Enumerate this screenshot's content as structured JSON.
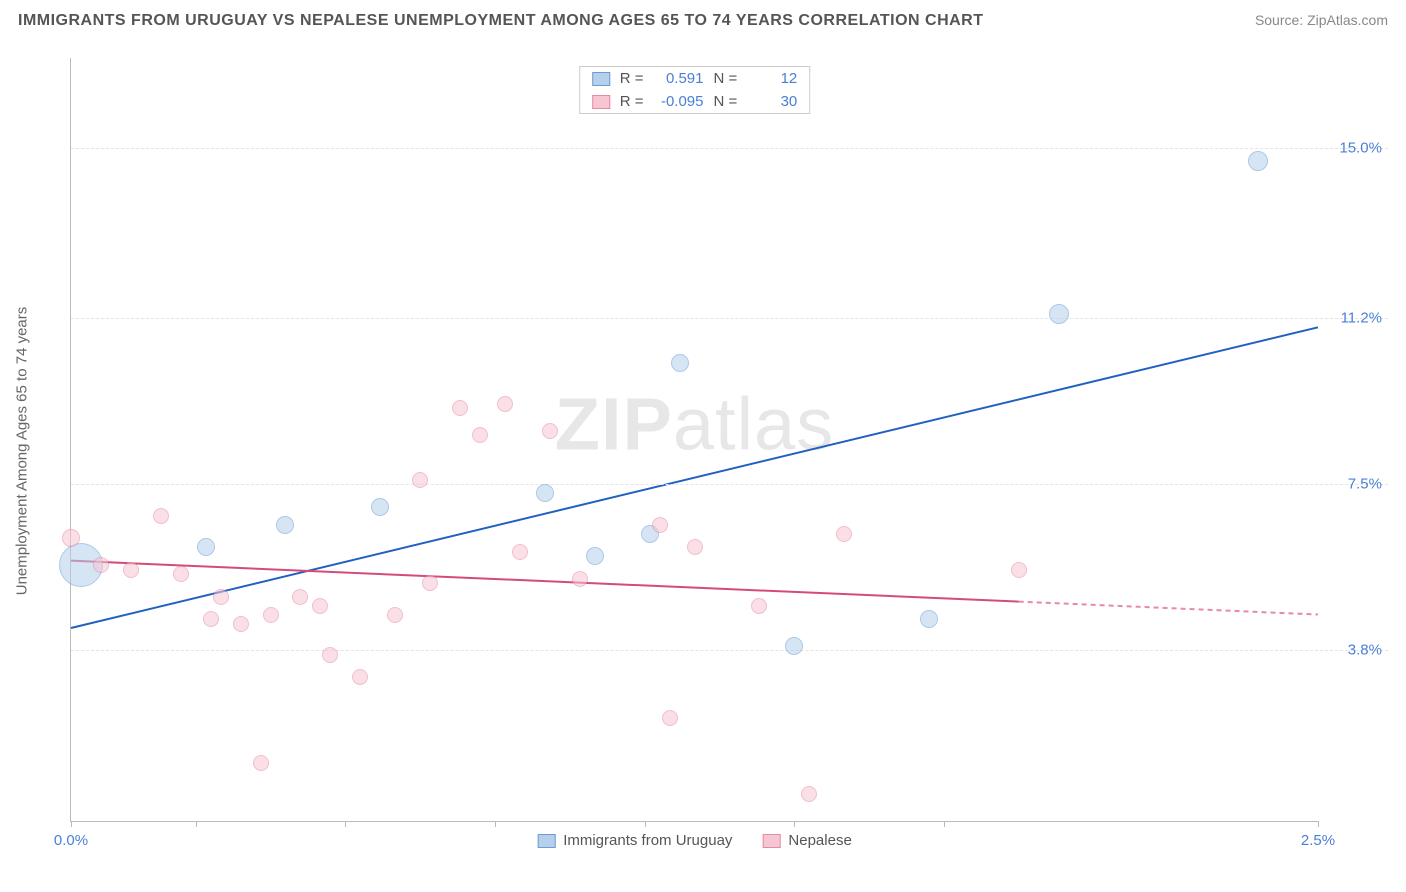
{
  "header": {
    "title": "IMMIGRANTS FROM URUGUAY VS NEPALESE UNEMPLOYMENT AMONG AGES 65 TO 74 YEARS CORRELATION CHART",
    "source": "Source: ZipAtlas.com"
  },
  "watermark": {
    "prefix": "ZIP",
    "suffix": "atlas"
  },
  "chart": {
    "type": "scatter",
    "ylabel": "Unemployment Among Ages 65 to 74 years",
    "background_color": "#ffffff",
    "grid_color": "#e4e4e4",
    "axis_color": "#bbbbbb",
    "tick_label_color": "#4a7fd6",
    "xlim": [
      0.0,
      2.5
    ],
    "ylim": [
      0.0,
      17.0
    ],
    "xticks": [
      0.0,
      0.25,
      0.55,
      0.85,
      1.15,
      1.45,
      1.75,
      2.5
    ],
    "xtick_labels": {
      "0": "0.0%",
      "2.5": "2.5%"
    },
    "yticks": [
      3.8,
      7.5,
      11.2,
      15.0
    ],
    "ytick_labels": [
      "3.8%",
      "7.5%",
      "11.2%",
      "15.0%"
    ],
    "series": [
      {
        "name": "Immigrants from Uruguay",
        "fill": "#b6d0ec",
        "stroke": "#6b9cd6",
        "fill_opacity": 0.55,
        "line_color": "#2060c0",
        "line_width": 2,
        "r_value": "0.591",
        "n_value": "12",
        "trend": {
          "x1": 0.0,
          "y1": 4.3,
          "x2": 2.5,
          "y2": 11.0,
          "solid_end_x": 2.5
        },
        "points": [
          {
            "x": 0.02,
            "y": 5.7,
            "r": 22
          },
          {
            "x": 0.27,
            "y": 6.1,
            "r": 9
          },
          {
            "x": 0.43,
            "y": 6.6,
            "r": 9
          },
          {
            "x": 0.62,
            "y": 7.0,
            "r": 9
          },
          {
            "x": 0.95,
            "y": 7.3,
            "r": 9
          },
          {
            "x": 1.05,
            "y": 5.9,
            "r": 9
          },
          {
            "x": 1.16,
            "y": 6.4,
            "r": 9
          },
          {
            "x": 1.22,
            "y": 10.2,
            "r": 9
          },
          {
            "x": 1.45,
            "y": 3.9,
            "r": 9
          },
          {
            "x": 1.72,
            "y": 4.5,
            "r": 9
          },
          {
            "x": 1.98,
            "y": 11.3,
            "r": 10
          },
          {
            "x": 2.38,
            "y": 14.7,
            "r": 10
          }
        ]
      },
      {
        "name": "Nepalese",
        "fill": "#f6c6d2",
        "stroke": "#e78aa3",
        "fill_opacity": 0.55,
        "line_color": "#d64a7a",
        "line_width": 2,
        "r_value": "-0.095",
        "n_value": "30",
        "trend": {
          "x1": 0.0,
          "y1": 5.8,
          "x2": 2.5,
          "y2": 4.6,
          "solid_end_x": 1.9
        },
        "points": [
          {
            "x": 0.0,
            "y": 6.3,
            "r": 9
          },
          {
            "x": 0.06,
            "y": 5.7,
            "r": 8
          },
          {
            "x": 0.12,
            "y": 5.6,
            "r": 8
          },
          {
            "x": 0.18,
            "y": 6.8,
            "r": 8
          },
          {
            "x": 0.22,
            "y": 5.5,
            "r": 8
          },
          {
            "x": 0.28,
            "y": 4.5,
            "r": 8
          },
          {
            "x": 0.3,
            "y": 5.0,
            "r": 8
          },
          {
            "x": 0.34,
            "y": 4.4,
            "r": 8
          },
          {
            "x": 0.38,
            "y": 1.3,
            "r": 8
          },
          {
            "x": 0.4,
            "y": 4.6,
            "r": 8
          },
          {
            "x": 0.46,
            "y": 5.0,
            "r": 8
          },
          {
            "x": 0.5,
            "y": 4.8,
            "r": 8
          },
          {
            "x": 0.52,
            "y": 3.7,
            "r": 8
          },
          {
            "x": 0.58,
            "y": 3.2,
            "r": 8
          },
          {
            "x": 0.65,
            "y": 4.6,
            "r": 8
          },
          {
            "x": 0.7,
            "y": 7.6,
            "r": 8
          },
          {
            "x": 0.72,
            "y": 5.3,
            "r": 8
          },
          {
            "x": 0.78,
            "y": 9.2,
            "r": 8
          },
          {
            "x": 0.82,
            "y": 8.6,
            "r": 8
          },
          {
            "x": 0.87,
            "y": 9.3,
            "r": 8
          },
          {
            "x": 0.9,
            "y": 6.0,
            "r": 8
          },
          {
            "x": 0.96,
            "y": 8.7,
            "r": 8
          },
          {
            "x": 1.02,
            "y": 5.4,
            "r": 8
          },
          {
            "x": 1.18,
            "y": 6.6,
            "r": 8
          },
          {
            "x": 1.2,
            "y": 2.3,
            "r": 8
          },
          {
            "x": 1.25,
            "y": 6.1,
            "r": 8
          },
          {
            "x": 1.38,
            "y": 4.8,
            "r": 8
          },
          {
            "x": 1.48,
            "y": 0.6,
            "r": 8
          },
          {
            "x": 1.55,
            "y": 6.4,
            "r": 8
          },
          {
            "x": 1.9,
            "y": 5.6,
            "r": 8
          }
        ]
      }
    ]
  },
  "stats_legend": {
    "r_label": "R =",
    "n_label": "N ="
  }
}
